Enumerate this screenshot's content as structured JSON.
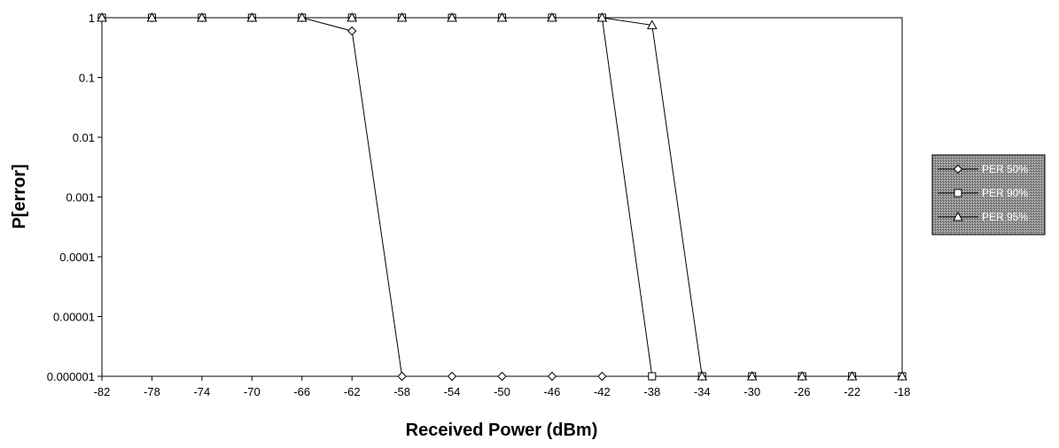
{
  "chart_data": {
    "type": "line",
    "xlabel": "Received Power (dBm)",
    "ylabel": "P[error]",
    "x": [
      -82,
      -78,
      -74,
      -70,
      -66,
      -62,
      -58,
      -54,
      -50,
      -46,
      -42,
      -38,
      -34,
      -30,
      -26,
      -22,
      -18
    ],
    "x_ticks": [
      "-82",
      "-78",
      "-74",
      "-70",
      "-66",
      "-62",
      "-58",
      "-54",
      "-50",
      "-46",
      "-42",
      "-38",
      "-34",
      "-30",
      "-26",
      "-22",
      "-18"
    ],
    "y_scale": "log",
    "ylim": [
      1e-06,
      1
    ],
    "y_ticks": [
      {
        "value": 1,
        "label": "1"
      },
      {
        "value": 0.1,
        "label": "0.1"
      },
      {
        "value": 0.01,
        "label": "0.01"
      },
      {
        "value": 0.001,
        "label": "0.001"
      },
      {
        "value": 0.0001,
        "label": "0.0001"
      },
      {
        "value": 1e-05,
        "label": "0.00001"
      },
      {
        "value": 1e-06,
        "label": "0.000001"
      }
    ],
    "grid": false,
    "legend_position": "right",
    "series": [
      {
        "name": "PER 50%",
        "marker": "diamond",
        "values": [
          1,
          1,
          1,
          1,
          1,
          0.6,
          1e-06,
          1e-06,
          1e-06,
          1e-06,
          1e-06,
          null,
          null,
          null,
          null,
          null,
          null
        ]
      },
      {
        "name": "PER 90%",
        "marker": "square",
        "values": [
          1,
          1,
          1,
          1,
          1,
          1,
          1,
          1,
          1,
          1,
          1,
          1e-06,
          1e-06,
          1e-06,
          1e-06,
          1e-06,
          1e-06
        ]
      },
      {
        "name": "PER 95%",
        "marker": "triangle",
        "values": [
          1,
          1,
          1,
          1,
          1,
          1,
          1,
          1,
          1,
          1,
          1,
          0.75,
          1e-06,
          1e-06,
          1e-06,
          1e-06,
          1e-06
        ]
      }
    ]
  }
}
